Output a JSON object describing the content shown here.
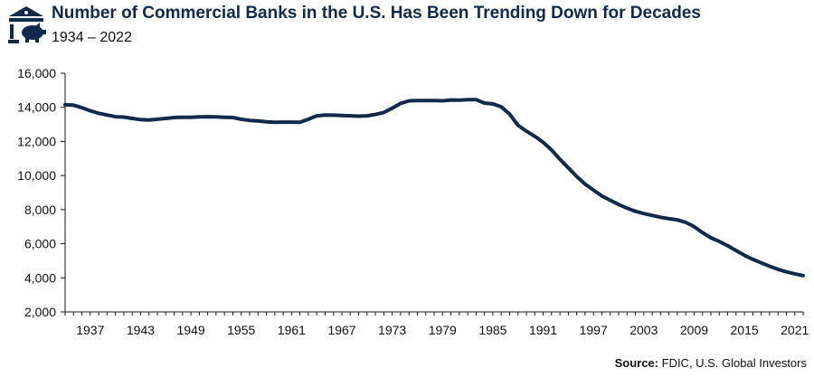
{
  "header": {
    "title": "Number of Commercial Banks in the U.S. Has Been Trending Down for Decades",
    "subtitle": "1934 – 2022"
  },
  "footer": {
    "source_label": "Source:",
    "source_text": "FDIC, U.S. Global Investors"
  },
  "colors": {
    "line": "#0f2a4a",
    "axis": "#1a1a1a",
    "brand": "#0f2a4a"
  },
  "icons": {
    "logo": "bank-piggy-logo-icon"
  },
  "chart_data": {
    "type": "line",
    "title": "Number of Commercial Banks in the U.S. Has Been Trending Down for Decades",
    "subtitle": "1934 – 2022",
    "xlabel": "",
    "ylabel": "",
    "xlim": [
      1934,
      2022
    ],
    "ylim": [
      2000,
      16000
    ],
    "yticks": [
      2000,
      4000,
      6000,
      8000,
      10000,
      12000,
      14000,
      16000
    ],
    "ytick_labels": [
      "2,000",
      "4,000",
      "6,000",
      "8,000",
      "10,000",
      "12,000",
      "14,000",
      "16,000"
    ],
    "xticks": [
      1937,
      1943,
      1949,
      1955,
      1961,
      1967,
      1973,
      1979,
      1985,
      1991,
      1997,
      2003,
      2009,
      2015,
      2021
    ],
    "grid": false,
    "legend": "none",
    "series": [
      {
        "name": "Commercial Banks",
        "x": [
          1934,
          1935,
          1936,
          1937,
          1938,
          1939,
          1940,
          1941,
          1942,
          1943,
          1944,
          1945,
          1946,
          1947,
          1948,
          1949,
          1950,
          1951,
          1952,
          1953,
          1954,
          1955,
          1956,
          1957,
          1958,
          1959,
          1960,
          1961,
          1962,
          1963,
          1964,
          1965,
          1966,
          1967,
          1968,
          1969,
          1970,
          1971,
          1972,
          1973,
          1974,
          1975,
          1976,
          1977,
          1978,
          1979,
          1980,
          1981,
          1982,
          1983,
          1984,
          1985,
          1986,
          1987,
          1988,
          1989,
          1990,
          1991,
          1992,
          1993,
          1994,
          1995,
          1996,
          1997,
          1998,
          1999,
          2000,
          2001,
          2002,
          2003,
          2004,
          2005,
          2006,
          2007,
          2008,
          2009,
          2010,
          2011,
          2012,
          2013,
          2014,
          2015,
          2016,
          2017,
          2018,
          2019,
          2020,
          2021,
          2022
        ],
        "values": [
          14150,
          14130,
          13980,
          13800,
          13650,
          13550,
          13450,
          13430,
          13350,
          13280,
          13260,
          13300,
          13350,
          13400,
          13420,
          13420,
          13440,
          13450,
          13440,
          13420,
          13400,
          13300,
          13230,
          13200,
          13150,
          13120,
          13130,
          13130,
          13120,
          13300,
          13500,
          13550,
          13540,
          13520,
          13500,
          13480,
          13500,
          13580,
          13700,
          13950,
          14230,
          14380,
          14400,
          14400,
          14400,
          14380,
          14430,
          14420,
          14450,
          14450,
          14250,
          14200,
          14030,
          13600,
          12950,
          12600,
          12300,
          11950,
          11500,
          10950,
          10450,
          9950,
          9500,
          9150,
          8800,
          8550,
          8300,
          8080,
          7900,
          7770,
          7660,
          7550,
          7470,
          7400,
          7250,
          7000,
          6650,
          6350,
          6130,
          5880,
          5600,
          5320,
          5080,
          4880,
          4680,
          4500,
          4350,
          4230,
          4130
        ]
      }
    ]
  }
}
